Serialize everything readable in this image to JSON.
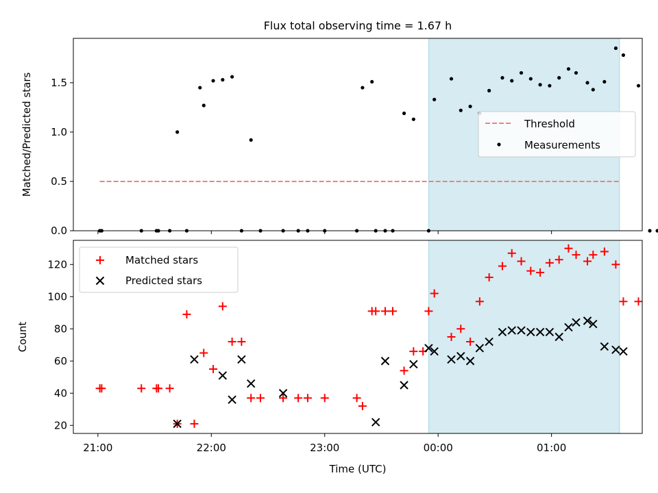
{
  "figure_title": "Flux total observing time = 1.67 h",
  "colors": {
    "threshold": "#f08080",
    "measurements": "#000000",
    "matched": "#ff0000",
    "predicted": "#000000",
    "span": "#add8e6"
  },
  "chart_data": [
    {
      "type": "scatter",
      "ylabel": "Matched/Predicted stars",
      "ylim": [
        0,
        1.95
      ],
      "yticks": [
        0.0,
        0.5,
        1.0,
        1.5
      ],
      "ytick_labels": [
        "0.0",
        "0.5",
        "1.0",
        "1.5"
      ],
      "xlim": [
        "20:47",
        "01:48"
      ],
      "shaded_span": [
        "23:55",
        "01:36"
      ],
      "legend_position": "center-right",
      "threshold": {
        "name": "Threshold",
        "value": 0.5,
        "x_range": [
          "21:01",
          "01:36"
        ]
      },
      "series": [
        {
          "name": "Measurements",
          "x": [
            "21:01",
            "21:02",
            "21:23",
            "21:31",
            "21:32",
            "21:38",
            "21:42",
            "21:47",
            "21:54",
            "21:56",
            "22:01",
            "22:06",
            "22:11",
            "22:16",
            "22:21",
            "22:26",
            "22:38",
            "22:46",
            "22:51",
            "23:00",
            "23:17",
            "23:20",
            "23:25",
            "23:27",
            "23:32",
            "23:36",
            "23:42",
            "23:47",
            "23:55",
            "23:58",
            "24:07",
            "24:12",
            "24:17",
            "24:22",
            "24:27",
            "24:34",
            "24:39",
            "24:44",
            "24:49",
            "24:54",
            "24:59",
            "25:04",
            "25:09",
            "25:13",
            "25:19",
            "25:22",
            "25:28",
            "25:34",
            "25:38",
            "25:46",
            "25:52",
            "25:56"
          ],
          "y": [
            0,
            0,
            0,
            0,
            0,
            0,
            1.0,
            0,
            1.45,
            1.27,
            1.52,
            1.53,
            1.56,
            0,
            0.92,
            0,
            0,
            0,
            0,
            0,
            0,
            1.45,
            1.51,
            0,
            0,
            0,
            1.19,
            1.13,
            0,
            1.33,
            1.54,
            1.22,
            1.26,
            1.19,
            1.42,
            1.55,
            1.52,
            1.6,
            1.54,
            1.48,
            1.47,
            1.55,
            1.64,
            1.6,
            1.5,
            1.43,
            1.51,
            1.85,
            1.78,
            1.47,
            0,
            0
          ]
        }
      ]
    },
    {
      "type": "scatter",
      "xlabel": "Time (UTC)",
      "ylabel": "Count",
      "ylim": [
        15,
        135
      ],
      "yticks": [
        20,
        40,
        60,
        80,
        100,
        120
      ],
      "xlim": [
        "20:47",
        "01:48"
      ],
      "xticks": [
        "21:00",
        "22:00",
        "23:00",
        "00:00",
        "01:00"
      ],
      "shaded_span": [
        "23:55",
        "01:36"
      ],
      "legend_position": "top-left",
      "series": [
        {
          "name": "Matched stars",
          "x": [
            "21:01",
            "21:02",
            "21:23",
            "21:31",
            "21:32",
            "21:38",
            "21:42",
            "21:47",
            "21:51",
            "21:56",
            "22:01",
            "22:06",
            "22:11",
            "22:16",
            "22:21",
            "22:26",
            "22:38",
            "22:46",
            "22:51",
            "23:00",
            "23:17",
            "23:20",
            "23:25",
            "23:27",
            "23:32",
            "23:36",
            "23:42",
            "23:47",
            "23:52",
            "23:55",
            "23:58",
            "24:07",
            "24:12",
            "24:17",
            "24:22",
            "24:27",
            "24:34",
            "24:39",
            "24:44",
            "24:49",
            "24:54",
            "24:59",
            "25:04",
            "25:09",
            "25:13",
            "25:19",
            "25:22",
            "25:28",
            "25:34",
            "25:38",
            "25:46"
          ],
          "y": [
            43,
            43,
            43,
            43,
            43,
            43,
            21,
            89,
            21,
            65,
            55,
            94,
            72,
            72,
            37,
            37,
            37,
            37,
            37,
            37,
            37,
            32,
            91,
            91,
            91,
            91,
            54,
            66,
            66,
            91,
            102,
            75,
            80,
            72,
            97,
            112,
            119,
            127,
            122,
            116,
            115,
            121,
            123,
            130,
            126,
            122,
            126,
            128,
            120,
            97,
            97
          ]
        },
        {
          "name": "Predicted stars",
          "x": [
            "21:42",
            "21:51",
            "22:06",
            "22:11",
            "22:16",
            "22:21",
            "22:38",
            "23:27",
            "23:32",
            "23:42",
            "23:47",
            "23:55",
            "23:58",
            "24:07",
            "24:12",
            "24:17",
            "24:22",
            "24:27",
            "24:34",
            "24:39",
            "24:44",
            "24:49",
            "24:54",
            "24:59",
            "25:04",
            "25:09",
            "25:13",
            "25:19",
            "25:22",
            "25:28",
            "25:34",
            "25:38"
          ],
          "y": [
            21,
            61,
            51,
            36,
            61,
            46,
            40,
            22,
            60,
            45,
            58,
            68,
            66,
            61,
            63,
            60,
            68,
            72,
            78,
            79,
            79,
            78,
            78,
            78,
            75,
            81,
            84,
            85,
            83,
            69,
            67,
            66
          ]
        }
      ]
    }
  ]
}
